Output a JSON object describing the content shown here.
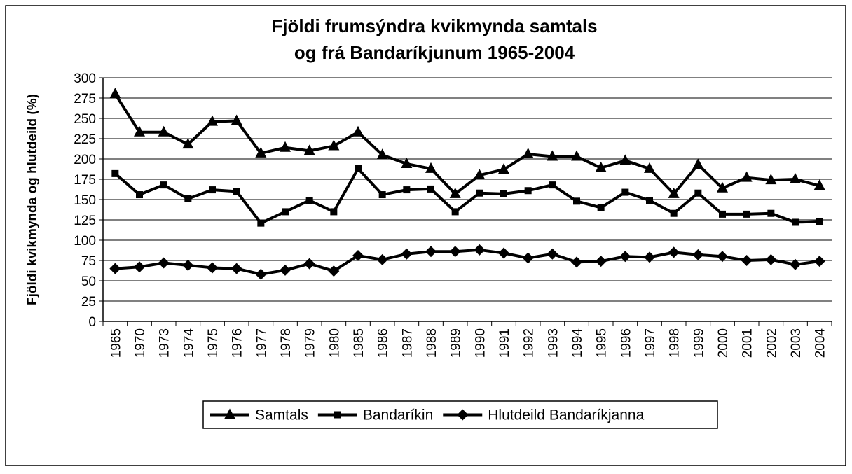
{
  "chart_data": {
    "type": "line",
    "title": [
      "Fjöldi frumsýndra kvikmynda samtals",
      "og frá Bandaríkjunum 1965-2004"
    ],
    "y_label": "Fjöldi kvikmynda og hlutdeild (%)",
    "categories": [
      "1965",
      "1970",
      "1973",
      "1974",
      "1975",
      "1976",
      "1977",
      "1978",
      "1979",
      "1980",
      "1985",
      "1986",
      "1987",
      "1988",
      "1989",
      "1990",
      "1991",
      "1992",
      "1993",
      "1994",
      "1995",
      "1996",
      "1997",
      "1998",
      "1999",
      "2000",
      "2001",
      "2002",
      "2003",
      "2004"
    ],
    "series": [
      {
        "name": "Samtals",
        "color": "#000000",
        "marker": "triangle",
        "values": [
          280,
          233,
          233,
          218,
          246,
          247,
          207,
          214,
          210,
          216,
          233,
          205,
          194,
          188,
          157,
          180,
          187,
          206,
          203,
          203,
          189,
          198,
          188,
          157,
          193,
          164,
          177,
          174,
          175,
          167
        ]
      },
      {
        "name": "Bandaríkin",
        "color": "#000000",
        "marker": "square",
        "values": [
          182,
          156,
          168,
          151,
          162,
          160,
          121,
          135,
          149,
          135,
          188,
          156,
          162,
          163,
          135,
          158,
          157,
          161,
          168,
          148,
          140,
          159,
          149,
          133,
          158,
          132,
          132,
          133,
          122,
          123
        ]
      },
      {
        "name": "Hlutdeild Bandaríkjanna",
        "color": "#000000",
        "marker": "diamond",
        "values": [
          65,
          67,
          72,
          69,
          66,
          65,
          58,
          63,
          71,
          62,
          81,
          76,
          83,
          86,
          86,
          88,
          84,
          78,
          83,
          73,
          74,
          80,
          79,
          85,
          82,
          80,
          75,
          76,
          70,
          74
        ]
      }
    ],
    "ylim": [
      0,
      300
    ],
    "yticks": [
      0,
      25,
      50,
      75,
      100,
      125,
      150,
      175,
      200,
      225,
      250,
      275,
      300
    ],
    "grid": true,
    "legend": "bottom"
  }
}
